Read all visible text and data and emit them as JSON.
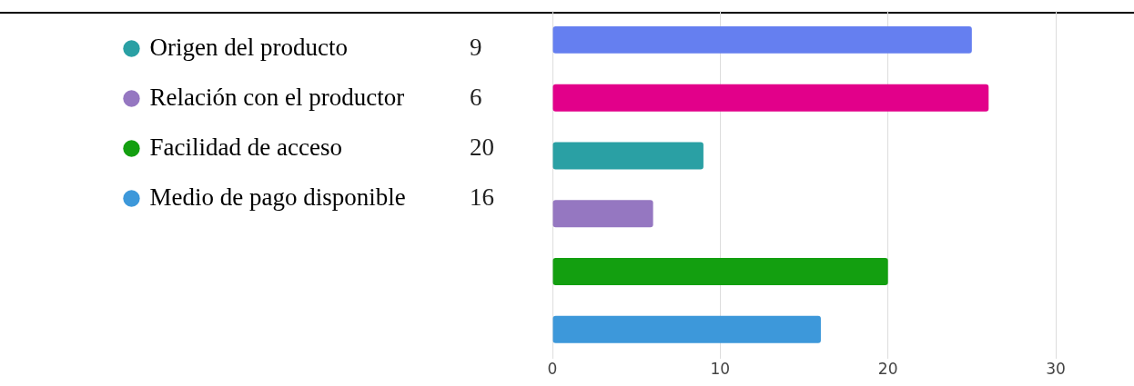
{
  "chart_data": {
    "type": "bar",
    "orientation": "horizontal",
    "categories": [
      null,
      null,
      null,
      null,
      null,
      null
    ],
    "series": [
      {
        "color": "#657ff0",
        "values": [
          25,
          null,
          null,
          null,
          null,
          null
        ]
      },
      {
        "color": "#e2008a",
        "values": [
          null,
          26,
          null,
          null,
          null,
          null
        ]
      },
      {
        "name": "Origen del producto",
        "color": "#2aa0a4",
        "values": [
          null,
          null,
          9,
          null,
          null,
          null
        ]
      },
      {
        "name": "Relación con el productor",
        "color": "#9577c1",
        "values": [
          null,
          null,
          null,
          6,
          null,
          null
        ]
      },
      {
        "name": "Facilidad de acceso",
        "color": "#139f10",
        "values": [
          null,
          null,
          null,
          null,
          20,
          null
        ]
      },
      {
        "name": "Medio de pago disponible",
        "color": "#3d98da",
        "values": [
          null,
          null,
          null,
          null,
          null,
          16
        ]
      }
    ],
    "annotations": [
      "9",
      "6",
      "20",
      "16"
    ],
    "xlim": [
      0,
      30
    ],
    "xticks": [
      0,
      10,
      20,
      30
    ],
    "grid": "x",
    "legend": "left",
    "tick_labels": "x"
  }
}
